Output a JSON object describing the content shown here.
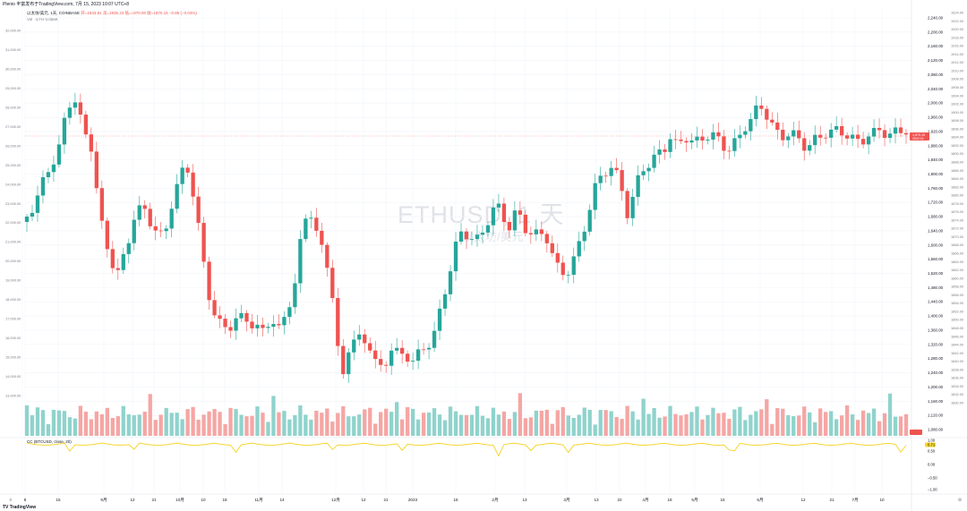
{
  "header": {
    "text": "Plenio 丰富发布于TradingView.com, 7月 15, 2023 10:07 UTC+8"
  },
  "legend": {
    "line1_name": "以太坊/美元, 1天, COINBASE",
    "line1_values": "开=1933.81 高=1935.23 低=1870.00 收=1870.15 −0.85 (−0.04%)",
    "line2": "Vol · ETH  0.056K"
  },
  "watermark": {
    "symbol": "ETHUSD, 1 天",
    "subtitle": "以太坊/美元"
  },
  "indicator": {
    "legend": "CC (BTCUSD, close, 20)",
    "axis_labels": [
      "1.00",
      "0.71",
      "0.50",
      "0.00",
      "−0.50",
      "−1.00"
    ],
    "value_badge": "0.71"
  },
  "price_axis": {
    "labels": [
      "2,240.00",
      "2,200.00",
      "2,160.00",
      "2,120.00",
      "2,080.00",
      "2,040.00",
      "2,000.00",
      "1,960.00",
      "1,920.00",
      "1,880.00",
      "1,840.00",
      "1,800.00",
      "1,760.00",
      "1,720.00",
      "1,680.00",
      "1,640.00",
      "1,600.00",
      "1,560.00",
      "1,520.00",
      "1,480.00",
      "1,440.00",
      "1,400.00",
      "1,360.00",
      "1,320.00",
      "1,280.00",
      "1,240.00",
      "1,200.00",
      "1,160.00",
      "1,120.00",
      "1,080.00"
    ],
    "current_price": "1,870.15",
    "current_price_sub": "09:52:15"
  },
  "secondary_axis": {
    "labels": [
      "32,000.00",
      "31,000.00",
      "30,000.00",
      "29,000.00",
      "28,000.00",
      "27,000.00",
      "26,000.00",
      "25,000.00",
      "24,000.00",
      "23,000.00",
      "22,000.00",
      "21,000.00",
      "20,000.00",
      "19,000.00",
      "18,000.00",
      "17,000.00",
      "16,000.00",
      "15,000.00",
      "14,000.00",
      "13,000.00"
    ]
  },
  "right_scale": {
    "labels": [
      "1924.00",
      "1922.00",
      "1920.00",
      "1918.00",
      "1916.00",
      "1914.00",
      "1912.00",
      "1910.00",
      "1908.00",
      "1906.00",
      "1904.00",
      "1902.00",
      "1900.00",
      "1898.00",
      "1896.00",
      "1894.00",
      "1892.00",
      "1890.00",
      "1888.00",
      "1886.00",
      "1884.00",
      "1882.00",
      "1880.00",
      "1878.00",
      "1876.00",
      "1874.00",
      "1872.00",
      "1870.00",
      "1868.00",
      "1866.00",
      "1864.00",
      "1862.00",
      "1860.00",
      "1858.00",
      "1856.00",
      "1854.00",
      "1852.00",
      "1850.00",
      "1848.00",
      "1846.00",
      "1844.00",
      "1842.00",
      "1840.00",
      "1838.00",
      "1836.00",
      "1834.00",
      "1832.00",
      "1830.00"
    ]
  },
  "time_axis": {
    "labels": [
      "8",
      "15",
      "9月",
      "12",
      "21",
      "10月",
      "10",
      "18",
      "11月",
      "14",
      "12月",
      "12",
      "21",
      "2023",
      "16",
      "2月",
      "13",
      "3月",
      "13",
      "22",
      "4月",
      "18",
      "5月",
      "15",
      "6月",
      "12",
      "21",
      "7月",
      "10"
    ],
    "left_icon": "≡",
    "right_label": "⚙"
  },
  "footer": {
    "logo": "TV TradingView"
  },
  "colors": {
    "up": "#26a69a",
    "down": "#ef5350",
    "vol_up": "#8fd3cc",
    "vol_down": "#f5a6a4",
    "indicator": "#f7d631",
    "grid": "#f0f3fa"
  }
}
